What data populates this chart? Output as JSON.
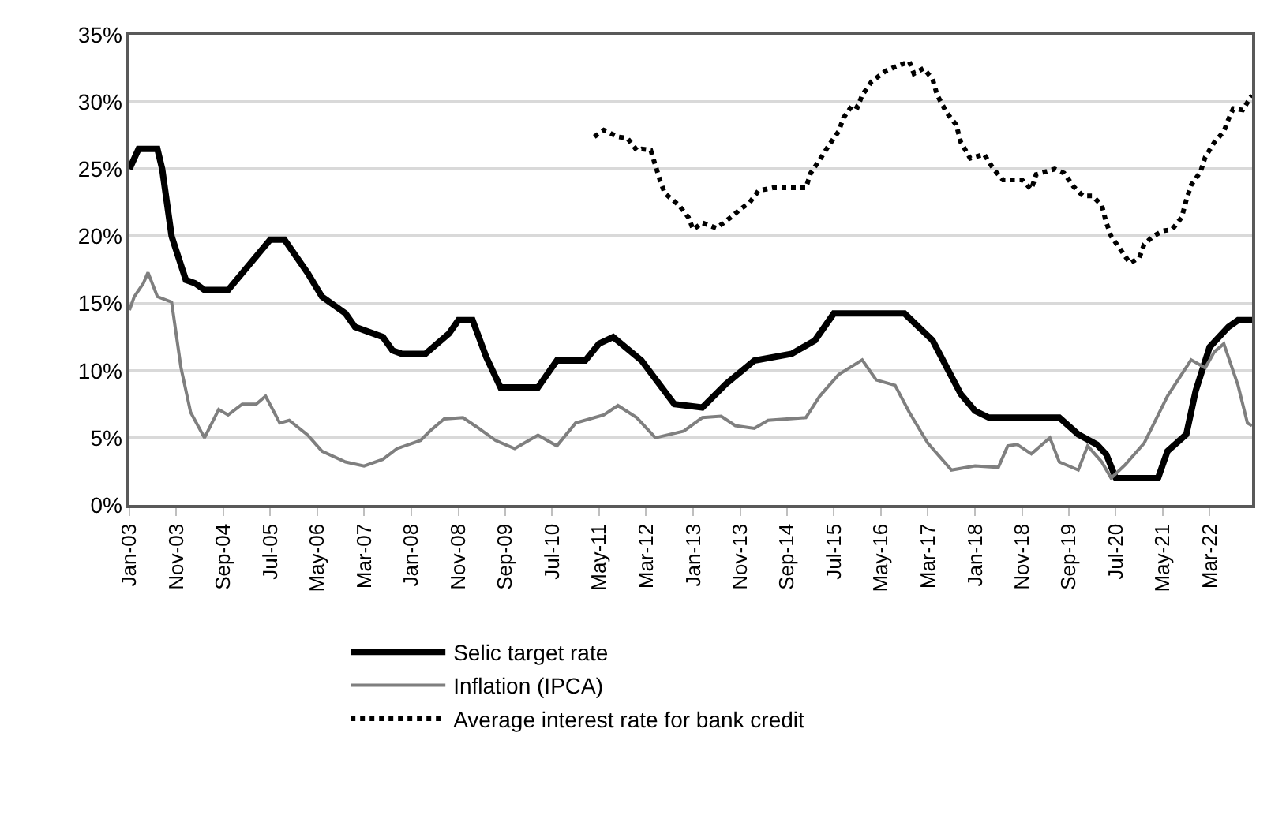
{
  "chart_data": {
    "type": "line",
    "xlim": [
      "2003-01",
      "2022-12"
    ],
    "xticks": [
      {
        "value": "2003-01",
        "label": "Jan-03"
      },
      {
        "value": "2003-11",
        "label": "Nov-03"
      },
      {
        "value": "2004-09",
        "label": "Sep-04"
      },
      {
        "value": "2005-07",
        "label": "Jul-05"
      },
      {
        "value": "2006-05",
        "label": "May-06"
      },
      {
        "value": "2007-03",
        "label": "Mar-07"
      },
      {
        "value": "2008-01",
        "label": "Jan-08"
      },
      {
        "value": "2008-11",
        "label": "Nov-08"
      },
      {
        "value": "2009-09",
        "label": "Sep-09"
      },
      {
        "value": "2010-07",
        "label": "Jul-10"
      },
      {
        "value": "2011-05",
        "label": "May-11"
      },
      {
        "value": "2012-03",
        "label": "Mar-12"
      },
      {
        "value": "2013-01",
        "label": "Jan-13"
      },
      {
        "value": "2013-11",
        "label": "Nov-13"
      },
      {
        "value": "2014-09",
        "label": "Sep-14"
      },
      {
        "value": "2015-07",
        "label": "Jul-15"
      },
      {
        "value": "2016-05",
        "label": "May-16"
      },
      {
        "value": "2017-03",
        "label": "Mar-17"
      },
      {
        "value": "2018-01",
        "label": "Jan-18"
      },
      {
        "value": "2018-11",
        "label": "Nov-18"
      },
      {
        "value": "2019-09",
        "label": "Sep-19"
      },
      {
        "value": "2020-07",
        "label": "Jul-20"
      },
      {
        "value": "2021-05",
        "label": "May-21"
      },
      {
        "value": "2022-03",
        "label": "Mar-22"
      }
    ],
    "ylim": [
      0,
      35
    ],
    "yticks": [
      {
        "value": 0,
        "label": "0%"
      },
      {
        "value": 5,
        "label": "5%"
      },
      {
        "value": 10,
        "label": "10%"
      },
      {
        "value": 15,
        "label": "15%"
      },
      {
        "value": 20,
        "label": "20%"
      },
      {
        "value": 25,
        "label": "25%"
      },
      {
        "value": 30,
        "label": "30%"
      },
      {
        "value": 35,
        "label": "35%"
      }
    ],
    "grid": "y",
    "legend": "bottom",
    "series": [
      {
        "name": "Selic target rate",
        "color": "#000000",
        "line_style": "solid",
        "x": [
          "2003-01",
          "2003-03",
          "2003-07",
          "2003-08",
          "2003-10",
          "2004-01",
          "2004-03",
          "2004-05",
          "2004-10",
          "2005-07",
          "2005-10",
          "2006-03",
          "2006-06",
          "2006-11",
          "2007-01",
          "2007-07",
          "2007-09",
          "2007-11",
          "2008-04",
          "2008-09",
          "2008-11",
          "2009-02",
          "2009-05",
          "2009-08",
          "2010-04",
          "2010-08",
          "2011-02",
          "2011-05",
          "2011-08",
          "2012-02",
          "2012-09",
          "2013-03",
          "2013-08",
          "2014-02",
          "2014-10",
          "2015-03",
          "2015-07",
          "2016-10",
          "2017-04",
          "2017-07",
          "2017-10",
          "2018-01",
          "2018-04",
          "2019-07",
          "2019-11",
          "2020-03",
          "2020-05",
          "2020-07",
          "2021-04",
          "2021-06",
          "2021-10",
          "2021-12",
          "2022-03",
          "2022-07",
          "2022-09",
          "2022-12"
        ],
        "values": [
          25,
          26.5,
          26.5,
          25,
          20,
          16.75,
          16.5,
          16,
          16,
          19.75,
          19.75,
          17.25,
          15.5,
          14.25,
          13.25,
          12.5,
          11.5,
          11.25,
          11.25,
          12.75,
          13.75,
          13.75,
          11,
          8.75,
          8.75,
          10.75,
          10.75,
          12,
          12.5,
          10.75,
          7.5,
          7.25,
          9,
          10.75,
          11.25,
          12.25,
          14.25,
          14.25,
          12.25,
          10.25,
          8.25,
          7,
          6.5,
          6.5,
          5.25,
          4.5,
          3.75,
          2,
          2,
          4,
          5.25,
          8.5,
          11.75,
          13.25,
          13.75,
          13.75
        ]
      },
      {
        "name": "Inflation (IPCA)",
        "color": "#7f7f7f",
        "line_style": "solid",
        "x": [
          "2003-01",
          "2003-02",
          "2003-04",
          "2003-05",
          "2003-07",
          "2003-10",
          "2003-12",
          "2004-02",
          "2004-05",
          "2004-08",
          "2004-10",
          "2005-01",
          "2005-04",
          "2005-06",
          "2005-09",
          "2005-11",
          "2006-03",
          "2006-06",
          "2006-11",
          "2007-03",
          "2007-07",
          "2007-10",
          "2008-03",
          "2008-05",
          "2008-08",
          "2008-12",
          "2009-03",
          "2009-07",
          "2009-11",
          "2010-04",
          "2010-08",
          "2010-12",
          "2011-06",
          "2011-09",
          "2012-01",
          "2012-05",
          "2012-11",
          "2013-03",
          "2013-07",
          "2013-10",
          "2014-02",
          "2014-05",
          "2015-01",
          "2015-04",
          "2015-08",
          "2016-01",
          "2016-04",
          "2016-08",
          "2016-11",
          "2017-03",
          "2017-08",
          "2018-01",
          "2018-06",
          "2018-08",
          "2018-10",
          "2019-01",
          "2019-05",
          "2019-07",
          "2019-11",
          "2020-01",
          "2020-04",
          "2020-06",
          "2020-09",
          "2021-01",
          "2021-06",
          "2021-11",
          "2022-02",
          "2022-04",
          "2022-06",
          "2022-09",
          "2022-11",
          "2022-12"
        ],
        "values": [
          14.5,
          15.5,
          16.5,
          17.3,
          15.5,
          15.1,
          10.2,
          6.9,
          5.0,
          7.1,
          6.7,
          7.5,
          7.5,
          8.1,
          6.1,
          6.3,
          5.2,
          4.0,
          3.2,
          2.9,
          3.4,
          4.2,
          4.8,
          5.5,
          6.4,
          6.5,
          5.8,
          4.8,
          4.2,
          5.2,
          4.4,
          6.1,
          6.7,
          7.4,
          6.5,
          5.0,
          5.5,
          6.5,
          6.6,
          5.9,
          5.7,
          6.3,
          6.5,
          8.1,
          9.7,
          10.8,
          9.3,
          8.9,
          6.9,
          4.6,
          2.6,
          2.9,
          2.8,
          4.4,
          4.5,
          3.8,
          5.0,
          3.2,
          2.6,
          4.4,
          3.2,
          2.0,
          3.0,
          4.6,
          8.1,
          10.8,
          10.2,
          11.4,
          12.0,
          8.9,
          6.1,
          5.9
        ]
      },
      {
        "name": "Average interest rate for bank credit",
        "color": "#000000",
        "line_style": "dotted",
        "x": [
          "2011-04",
          "2011-06",
          "2011-09",
          "2011-11",
          "2012-01",
          "2012-02",
          "2012-04",
          "2012-06",
          "2012-07",
          "2012-10",
          "2012-12",
          "2013-01",
          "2013-03",
          "2013-06",
          "2013-09",
          "2013-11",
          "2014-01",
          "2014-03",
          "2014-06",
          "2014-09",
          "2015-01",
          "2015-02",
          "2015-04",
          "2015-06",
          "2015-08",
          "2015-09",
          "2015-11",
          "2015-12",
          "2016-01",
          "2016-03",
          "2016-06",
          "2016-08",
          "2016-11",
          "2016-12",
          "2017-02",
          "2017-04",
          "2017-05",
          "2017-07",
          "2017-09",
          "2017-10",
          "2017-12",
          "2018-03",
          "2018-05",
          "2018-07",
          "2018-11",
          "2019-01",
          "2019-02",
          "2019-06",
          "2019-08",
          "2019-10",
          "2019-12",
          "2020-02",
          "2020-04",
          "2020-05",
          "2020-06",
          "2020-08",
          "2020-10",
          "2020-12",
          "2021-01",
          "2021-03",
          "2021-05",
          "2021-07",
          "2021-09",
          "2021-10",
          "2021-11",
          "2022-01",
          "2022-02",
          "2022-04",
          "2022-06",
          "2022-07",
          "2022-08",
          "2022-10",
          "2022-12"
        ],
        "values": [
          27.4,
          27.9,
          27.4,
          27.3,
          26.4,
          26.5,
          26.4,
          24.1,
          23.2,
          22.3,
          21.4,
          20.5,
          21.0,
          20.6,
          21.4,
          22.0,
          22.5,
          23.4,
          23.6,
          23.6,
          23.6,
          24.7,
          25.7,
          26.8,
          27.8,
          28.8,
          29.8,
          29.6,
          30.5,
          31.5,
          32.3,
          32.6,
          33.0,
          32.1,
          32.5,
          31.7,
          30.5,
          29.2,
          28.3,
          27.0,
          25.8,
          26.1,
          25.0,
          24.2,
          24.2,
          23.5,
          24.6,
          25.0,
          24.7,
          23.7,
          23.0,
          23.0,
          22.3,
          21.0,
          20.0,
          19.0,
          18.0,
          18.4,
          19.4,
          20.0,
          20.4,
          20.5,
          21.4,
          22.7,
          23.8,
          24.8,
          25.9,
          27.0,
          27.8,
          28.7,
          29.5,
          29.4,
          30.5
        ]
      }
    ]
  }
}
